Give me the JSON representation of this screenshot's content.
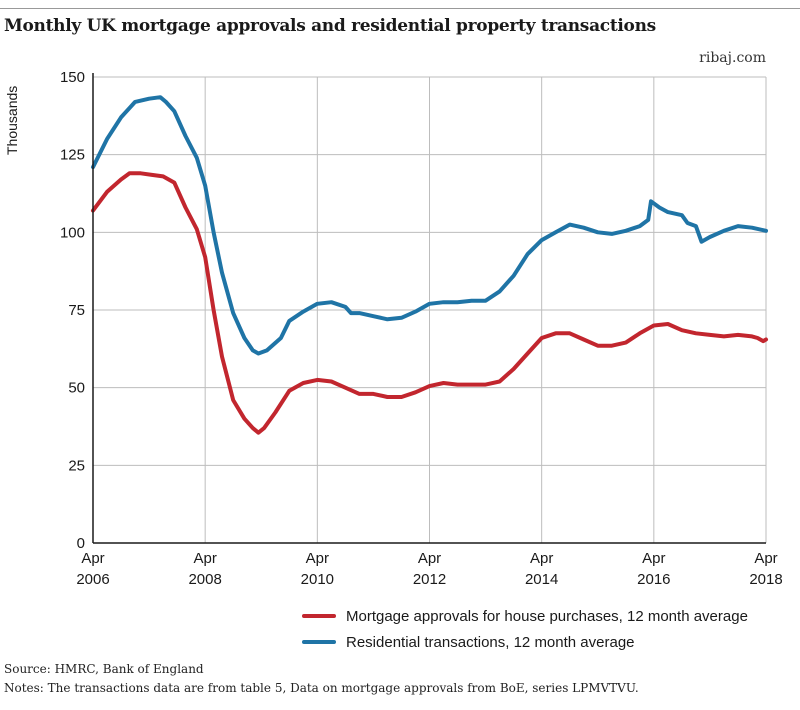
{
  "title": "Monthly UK mortgage approvals and residential property transactions",
  "brand": "ribaj.com",
  "source": "Source: HMRC, Bank of England",
  "notes": "Notes: The transactions data are from table 5, Data on mortgage approvals from BoE, series LPMVTVU.",
  "colors": {
    "approvals": "#c2262e",
    "transactions": "#1f74a6",
    "grid": "#bdbdbd",
    "axis": "#1a1a1a"
  },
  "chart_data": {
    "type": "line",
    "title": "Monthly UK mortgage approvals and residential property transactions",
    "ylabel": "Thousands",
    "xlabel": "",
    "ylim": [
      0,
      150
    ],
    "xlim": [
      2006.25,
      2018.25
    ],
    "grid": true,
    "legend_position": "bottom",
    "yticks": [
      0,
      25,
      50,
      75,
      100,
      125,
      150
    ],
    "xticks": [
      {
        "x": 2006.25,
        "month": "Apr",
        "year": "2006"
      },
      {
        "x": 2008.25,
        "month": "Apr",
        "year": "2008"
      },
      {
        "x": 2010.25,
        "month": "Apr",
        "year": "2010"
      },
      {
        "x": 2012.25,
        "month": "Apr",
        "year": "2012"
      },
      {
        "x": 2014.25,
        "month": "Apr",
        "year": "2014"
      },
      {
        "x": 2016.25,
        "month": "Apr",
        "year": "2016"
      },
      {
        "x": 2018.25,
        "month": "Apr",
        "year": "2018"
      }
    ],
    "series": [
      {
        "name": "Mortgage approvals for house purchases, 12 month average",
        "color": "#c2262e",
        "points": [
          [
            2006.25,
            107
          ],
          [
            2006.5,
            113
          ],
          [
            2006.75,
            117
          ],
          [
            2006.9,
            119
          ],
          [
            2007.1,
            119
          ],
          [
            2007.3,
            118.5
          ],
          [
            2007.5,
            118
          ],
          [
            2007.7,
            116
          ],
          [
            2007.9,
            108
          ],
          [
            2008.1,
            101
          ],
          [
            2008.25,
            92
          ],
          [
            2008.4,
            75
          ],
          [
            2008.55,
            60
          ],
          [
            2008.75,
            46
          ],
          [
            2008.95,
            40
          ],
          [
            2009.1,
            37
          ],
          [
            2009.2,
            35.5
          ],
          [
            2009.3,
            37
          ],
          [
            2009.5,
            42
          ],
          [
            2009.75,
            49
          ],
          [
            2010.0,
            51.5
          ],
          [
            2010.25,
            52.5
          ],
          [
            2010.5,
            52
          ],
          [
            2010.75,
            50
          ],
          [
            2011.0,
            48
          ],
          [
            2011.25,
            48
          ],
          [
            2011.5,
            47
          ],
          [
            2011.75,
            47
          ],
          [
            2012.0,
            48.5
          ],
          [
            2012.25,
            50.5
          ],
          [
            2012.5,
            51.5
          ],
          [
            2012.75,
            51
          ],
          [
            2013.0,
            51
          ],
          [
            2013.25,
            51
          ],
          [
            2013.5,
            52
          ],
          [
            2013.75,
            56
          ],
          [
            2014.0,
            61
          ],
          [
            2014.25,
            66
          ],
          [
            2014.5,
            67.5
          ],
          [
            2014.75,
            67.5
          ],
          [
            2015.0,
            65.5
          ],
          [
            2015.25,
            63.5
          ],
          [
            2015.5,
            63.5
          ],
          [
            2015.75,
            64.5
          ],
          [
            2016.0,
            67.5
          ],
          [
            2016.25,
            70
          ],
          [
            2016.5,
            70.5
          ],
          [
            2016.75,
            68.5
          ],
          [
            2017.0,
            67.5
          ],
          [
            2017.25,
            67
          ],
          [
            2017.5,
            66.5
          ],
          [
            2017.75,
            67
          ],
          [
            2018.0,
            66.5
          ],
          [
            2018.1,
            66
          ],
          [
            2018.2,
            65
          ],
          [
            2018.25,
            65.5
          ]
        ]
      },
      {
        "name": "Residential transactions, 12 month average",
        "color": "#1f74a6",
        "points": [
          [
            2006.25,
            121
          ],
          [
            2006.5,
            130
          ],
          [
            2006.75,
            137
          ],
          [
            2007.0,
            142
          ],
          [
            2007.25,
            143
          ],
          [
            2007.45,
            143.5
          ],
          [
            2007.55,
            142
          ],
          [
            2007.7,
            139
          ],
          [
            2007.9,
            131
          ],
          [
            2008.1,
            124
          ],
          [
            2008.25,
            115
          ],
          [
            2008.4,
            100
          ],
          [
            2008.55,
            87
          ],
          [
            2008.75,
            74
          ],
          [
            2008.95,
            66
          ],
          [
            2009.1,
            62
          ],
          [
            2009.2,
            61
          ],
          [
            2009.35,
            62
          ],
          [
            2009.6,
            66
          ],
          [
            2009.75,
            71.5
          ],
          [
            2010.0,
            74.5
          ],
          [
            2010.25,
            77
          ],
          [
            2010.5,
            77.5
          ],
          [
            2010.75,
            76
          ],
          [
            2010.85,
            74
          ],
          [
            2011.0,
            74
          ],
          [
            2011.25,
            73
          ],
          [
            2011.5,
            72
          ],
          [
            2011.75,
            72.5
          ],
          [
            2012.0,
            74.5
          ],
          [
            2012.25,
            77
          ],
          [
            2012.5,
            77.5
          ],
          [
            2012.75,
            77.5
          ],
          [
            2013.0,
            78
          ],
          [
            2013.25,
            78
          ],
          [
            2013.5,
            81
          ],
          [
            2013.75,
            86
          ],
          [
            2014.0,
            93
          ],
          [
            2014.25,
            97.5
          ],
          [
            2014.5,
            100
          ],
          [
            2014.75,
            102.5
          ],
          [
            2015.0,
            101.5
          ],
          [
            2015.25,
            100
          ],
          [
            2015.5,
            99.5
          ],
          [
            2015.75,
            100.5
          ],
          [
            2016.0,
            102
          ],
          [
            2016.15,
            104
          ],
          [
            2016.2,
            110
          ],
          [
            2016.35,
            108
          ],
          [
            2016.5,
            106.5
          ],
          [
            2016.75,
            105.5
          ],
          [
            2016.85,
            103
          ],
          [
            2017.0,
            102
          ],
          [
            2017.1,
            97
          ],
          [
            2017.25,
            98.5
          ],
          [
            2017.5,
            100.5
          ],
          [
            2017.75,
            102
          ],
          [
            2018.0,
            101.5
          ],
          [
            2018.25,
            100.5
          ]
        ]
      }
    ]
  }
}
